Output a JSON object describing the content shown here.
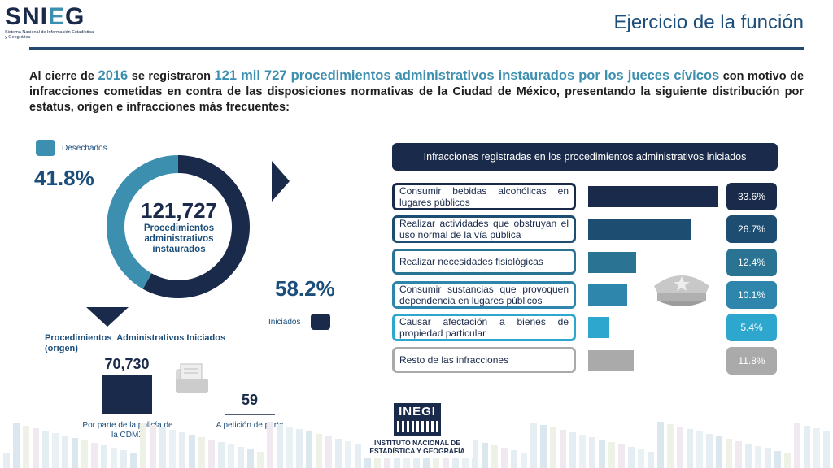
{
  "header": {
    "logo_text": "SNIEG",
    "logo_subtitle": "Sistema Nacional de Información Estadística y Geográfica",
    "title": "Ejercicio de la función"
  },
  "intro": {
    "p1": "Al cierre de ",
    "year": "2016",
    "p2": " se registraron ",
    "highlight": "121 mil 727 procedimientos administrativos instaurados por los jueces cívicos",
    "p3": " con motivo de infracciones cometidas en contra de las disposiciones normativas de la Ciudad de México, presentando la siguiente distribución por estatus, origen e infracciones más frecuentes:"
  },
  "chart_data": [
    {
      "type": "pie",
      "labels": [
        "Desechados",
        "Iniciados"
      ],
      "values": [
        41.8,
        58.2
      ],
      "value_labels": [
        "41.8%",
        "58.2%"
      ],
      "colors": [
        "#3d8fb0",
        "#1a2a4a"
      ],
      "center_value": "121,727",
      "center_label": "Procedimientos administrativos instaurados"
    },
    {
      "type": "bar",
      "title": "Procedimientos  Administrativos Iniciados (origen)",
      "categories": [
        "Por parte de la policía de la CDMX",
        "A petición de parte"
      ],
      "values": [
        70730,
        59
      ],
      "value_labels": [
        "70,730",
        "59"
      ],
      "color": "#1a2a4a"
    },
    {
      "type": "bar",
      "orientation": "horizontal",
      "title": "Infracciones registradas en los procedimientos administrativos iniciados",
      "categories": [
        "Consumir bebidas alcohólicas en lugares públicos",
        "Realizar actividades que obstruyan el uso normal de la vía pública",
        "Realizar necesidades fisiológicas",
        "Consumir sustancias que provoquen dependencia en lugares públicos",
        "Causar afectación a bienes de propiedad particular",
        "Resto de las infracciones"
      ],
      "values": [
        33.6,
        26.7,
        12.4,
        10.1,
        5.4,
        11.8
      ],
      "value_labels": [
        "33.6%",
        "26.7%",
        "12.4%",
        "10.1%",
        "5.4%",
        "11.8%"
      ],
      "colors": [
        "#1a2a4a",
        "#1e4d72",
        "#2a7393",
        "#2f86ad",
        "#2ea7cf",
        "#aaaaaa"
      ]
    }
  ],
  "footer": {
    "logo_text": "INEGI",
    "logo_caption": "INSTITUTO NACIONAL DE ESTADÍSTICA Y GEOGRAFÍA"
  }
}
